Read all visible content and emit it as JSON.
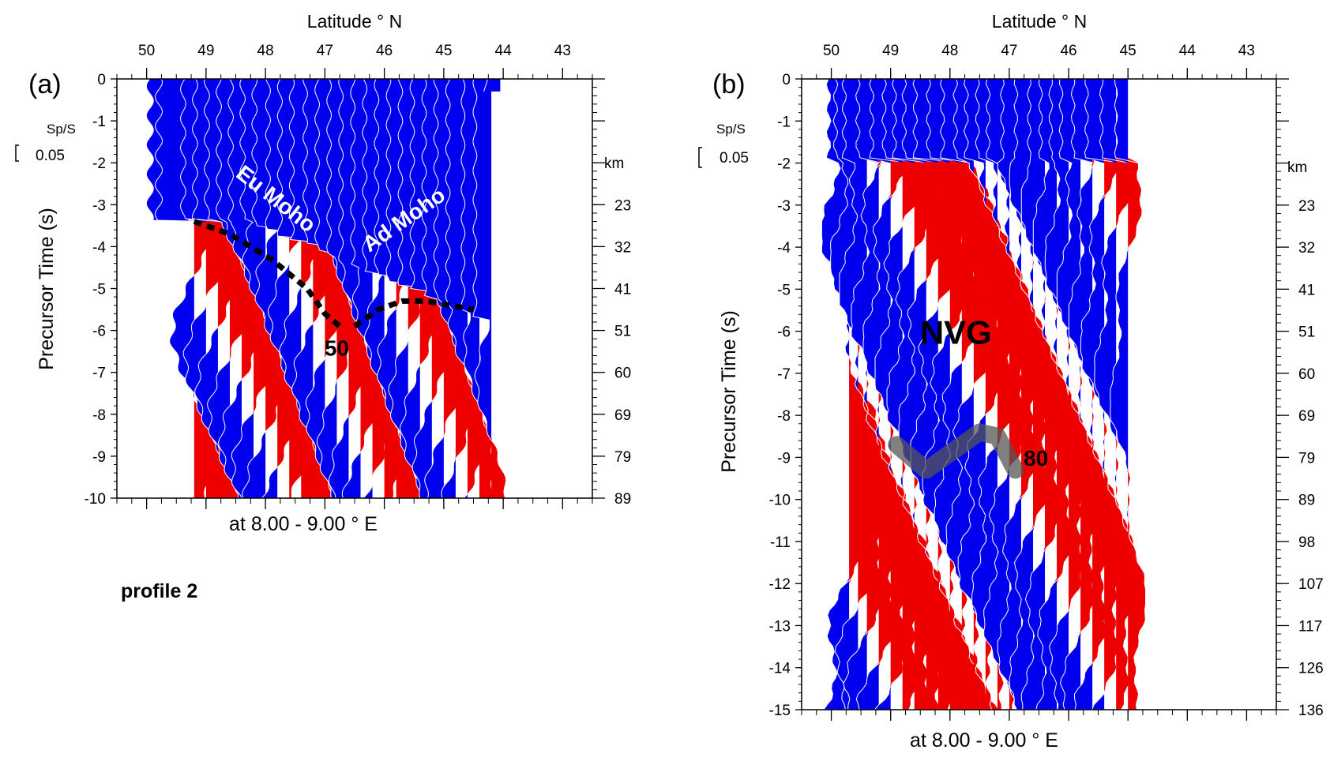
{
  "figure": {
    "profile_label": "profile 2",
    "colors": {
      "positive": "#ee0000",
      "negative": "#0000ee",
      "trace_line": "#ffffff",
      "ink": "#000000"
    }
  },
  "chart_data": [
    {
      "type": "area",
      "panel_label": "(a)",
      "title": "Latitude ° N",
      "xlabel": "at 8.00 - 9.00 ° E",
      "ylabel": "Precursor Time (s)",
      "y2label": "km",
      "scale_label": "Sp/S",
      "scale_value": "0.05",
      "x_ticks": [
        "50",
        "49",
        "48",
        "47",
        "46",
        "45",
        "44",
        "43"
      ],
      "x_tick_values": [
        50,
        49,
        48,
        47,
        46,
        45,
        44,
        43
      ],
      "xlim": [
        50.5,
        42.5
      ],
      "y_ticks": [
        "0",
        "-1",
        "-2",
        "-3",
        "-4",
        "-5",
        "-6",
        "-7",
        "-8",
        "-9",
        "-10"
      ],
      "ylim": [
        -10,
        0
      ],
      "depth_ticks": [
        {
          "t": -3,
          "label": "23"
        },
        {
          "t": -4,
          "label": "32"
        },
        {
          "t": -5,
          "label": "41"
        },
        {
          "t": -6,
          "label": "51"
        },
        {
          "t": -7,
          "label": "60"
        },
        {
          "t": -8,
          "label": "69"
        },
        {
          "t": -9,
          "label": "79"
        },
        {
          "t": -10,
          "label": "89"
        }
      ],
      "annotations": [
        {
          "text": "Eu Moho",
          "lat": 47.9,
          "t": -3.0,
          "angle": 38,
          "color": "#ffffff"
        },
        {
          "text": "Ad Moho",
          "lat": 45.6,
          "t": -3.5,
          "angle": -35,
          "color": "#ffffff"
        },
        {
          "text": "50",
          "lat": 46.8,
          "t": -6.6,
          "angle": 0,
          "color": "#000000"
        }
      ],
      "moho_lines": [
        {
          "name": "Eu Moho",
          "lat": [
            49.2,
            48.6,
            47.9,
            47.3,
            47.0,
            46.75
          ],
          "t": [
            -3.4,
            -3.7,
            -4.3,
            -5.0,
            -5.6,
            -5.9
          ]
        },
        {
          "name": "Ad Moho",
          "lat": [
            46.5,
            46.1,
            45.7,
            45.3,
            44.9,
            44.5
          ],
          "t": [
            -5.9,
            -5.5,
            -5.3,
            -5.3,
            -5.4,
            -5.5
          ]
        }
      ],
      "traces": [
        {
          "lat": 49.45,
          "amp": 0.9,
          "t0": 0,
          "t1": -3.4
        },
        {
          "lat": 49.3,
          "amp": 0.9,
          "t0": 0,
          "t1": -3.4
        },
        {
          "lat": 49.2,
          "amp": 0.75,
          "t0": -3.4,
          "t1": -10
        },
        {
          "lat": 49.0,
          "amp": 0.7,
          "t0": 0,
          "t1": -10
        },
        {
          "lat": 48.8,
          "amp": 0.7,
          "t0": 0,
          "t1": -10
        },
        {
          "lat": 48.6,
          "amp": 0.7,
          "t0": 0,
          "t1": -10
        },
        {
          "lat": 48.4,
          "amp": 0.7,
          "t0": 0,
          "t1": -10
        },
        {
          "lat": 48.2,
          "amp": 0.7,
          "t0": 0,
          "t1": -10
        },
        {
          "lat": 48.0,
          "amp": 0.7,
          "t0": 0,
          "t1": -10
        },
        {
          "lat": 47.8,
          "amp": 0.7,
          "t0": 0,
          "t1": -10
        },
        {
          "lat": 47.6,
          "amp": 0.65,
          "t0": 0,
          "t1": -10
        },
        {
          "lat": 47.4,
          "amp": 0.65,
          "t0": 0,
          "t1": -10
        },
        {
          "lat": 47.2,
          "amp": 0.65,
          "t0": 0,
          "t1": -10
        },
        {
          "lat": 47.0,
          "amp": 0.6,
          "t0": 0,
          "t1": -10
        },
        {
          "lat": 46.8,
          "amp": 0.6,
          "t0": 0,
          "t1": -10
        },
        {
          "lat": 46.6,
          "amp": 0.6,
          "t0": 0,
          "t1": -10
        },
        {
          "lat": 46.4,
          "amp": 0.6,
          "t0": 0,
          "t1": -10
        },
        {
          "lat": 46.2,
          "amp": 0.6,
          "t0": 0,
          "t1": -10
        },
        {
          "lat": 46.0,
          "amp": 0.6,
          "t0": 0,
          "t1": -10
        },
        {
          "lat": 45.8,
          "amp": 0.6,
          "t0": 0,
          "t1": -10
        },
        {
          "lat": 45.6,
          "amp": 0.6,
          "t0": 0,
          "t1": -10
        },
        {
          "lat": 45.4,
          "amp": 0.6,
          "t0": 0,
          "t1": -10
        },
        {
          "lat": 45.2,
          "amp": 0.6,
          "t0": 0,
          "t1": -10
        },
        {
          "lat": 45.0,
          "amp": 0.6,
          "t0": 0,
          "t1": -10
        },
        {
          "lat": 44.8,
          "amp": 0.6,
          "t0": 0,
          "t1": -10
        },
        {
          "lat": 44.6,
          "amp": 0.6,
          "t0": 0,
          "t1": -10
        },
        {
          "lat": 44.4,
          "amp": 0.5,
          "t0": 0,
          "t1": -10
        },
        {
          "lat": 44.2,
          "amp": 0.5,
          "t0": 0,
          "t1": -10
        },
        {
          "lat": 44.05,
          "amp": 0.45,
          "t0": 0,
          "t1": -0.3
        }
      ]
    },
    {
      "type": "area",
      "panel_label": "(b)",
      "title": "Latitude ° N",
      "xlabel": "at 8.00 - 9.00 ° E",
      "ylabel": "Precursor Time (s)",
      "y2label": "km",
      "scale_label": "Sp/S",
      "scale_value": "0.05",
      "x_ticks": [
        "50",
        "49",
        "48",
        "47",
        "46",
        "45",
        "44",
        "43"
      ],
      "x_tick_values": [
        50,
        49,
        48,
        47,
        46,
        45,
        44,
        43
      ],
      "xlim": [
        50.5,
        42.5
      ],
      "y_ticks": [
        "0",
        "-1",
        "-2",
        "-3",
        "-4",
        "-5",
        "-6",
        "-7",
        "-8",
        "-9",
        "-10",
        "-11",
        "-12",
        "-13",
        "-14",
        "-15"
      ],
      "ylim": [
        -15,
        0
      ],
      "depth_ticks": [
        {
          "t": -3,
          "label": "23"
        },
        {
          "t": -4,
          "label": "32"
        },
        {
          "t": -5,
          "label": "41"
        },
        {
          "t": -6,
          "label": "51"
        },
        {
          "t": -7,
          "label": "60"
        },
        {
          "t": -8,
          "label": "69"
        },
        {
          "t": -9,
          "label": "79"
        },
        {
          "t": -10,
          "label": "89"
        },
        {
          "t": -11,
          "label": "98"
        },
        {
          "t": -12,
          "label": "107"
        },
        {
          "t": -13,
          "label": "117"
        },
        {
          "t": -14,
          "label": "126"
        },
        {
          "t": -15,
          "label": "136"
        }
      ],
      "annotations": [
        {
          "text": "NVG",
          "lat": 47.9,
          "t": -6.3,
          "angle": 0,
          "color": "#000000",
          "size": "big"
        },
        {
          "text": "80",
          "lat": 46.55,
          "t": -9.2,
          "angle": 0,
          "color": "#000000"
        }
      ],
      "ngv_band": {
        "lat": [
          48.9,
          48.4,
          47.9,
          47.5,
          47.2,
          46.9
        ],
        "t": [
          -8.7,
          -9.3,
          -8.8,
          -8.4,
          -8.5,
          -9.3
        ]
      },
      "traces": [
        {
          "lat": 49.7,
          "amp": 0.7,
          "t0": 0,
          "t1": -15
        },
        {
          "lat": 49.55,
          "amp": 0.7,
          "t0": 0,
          "t1": -15
        },
        {
          "lat": 49.4,
          "amp": 0.7,
          "t0": 0,
          "t1": -15
        },
        {
          "lat": 49.2,
          "amp": 0.7,
          "t0": 0,
          "t1": -15
        },
        {
          "lat": 49.0,
          "amp": 0.7,
          "t0": 0,
          "t1": -15
        },
        {
          "lat": 48.8,
          "amp": 0.7,
          "t0": 0,
          "t1": -15
        },
        {
          "lat": 48.6,
          "amp": 0.7,
          "t0": 0,
          "t1": -15
        },
        {
          "lat": 48.4,
          "amp": 0.7,
          "t0": 0,
          "t1": -15
        },
        {
          "lat": 48.2,
          "amp": 0.7,
          "t0": 0,
          "t1": -15
        },
        {
          "lat": 48.0,
          "amp": 0.7,
          "t0": 0,
          "t1": -15
        },
        {
          "lat": 47.8,
          "amp": 0.7,
          "t0": 0,
          "t1": -15
        },
        {
          "lat": 47.6,
          "amp": 0.7,
          "t0": 0,
          "t1": -15
        },
        {
          "lat": 47.4,
          "amp": 0.7,
          "t0": 0,
          "t1": -15
        },
        {
          "lat": 47.2,
          "amp": 0.65,
          "t0": 0,
          "t1": -15
        },
        {
          "lat": 47.0,
          "amp": 0.65,
          "t0": 0,
          "t1": -15
        },
        {
          "lat": 46.8,
          "amp": 0.6,
          "t0": 0,
          "t1": -15
        },
        {
          "lat": 46.6,
          "amp": 0.6,
          "t0": 0,
          "t1": -15
        },
        {
          "lat": 46.4,
          "amp": 0.6,
          "t0": 0,
          "t1": -15
        },
        {
          "lat": 46.2,
          "amp": 0.6,
          "t0": 0,
          "t1": -15
        },
        {
          "lat": 46.0,
          "amp": 0.6,
          "t0": 0,
          "t1": -15
        },
        {
          "lat": 45.8,
          "amp": 0.6,
          "t0": 0,
          "t1": -15
        },
        {
          "lat": 45.6,
          "amp": 0.6,
          "t0": 0,
          "t1": -15
        },
        {
          "lat": 45.4,
          "amp": 0.6,
          "t0": 0,
          "t1": -15
        },
        {
          "lat": 45.2,
          "amp": 0.55,
          "t0": 0,
          "t1": -15
        },
        {
          "lat": 45.0,
          "amp": 0.45,
          "t0": 0,
          "t1": -15
        }
      ]
    }
  ]
}
